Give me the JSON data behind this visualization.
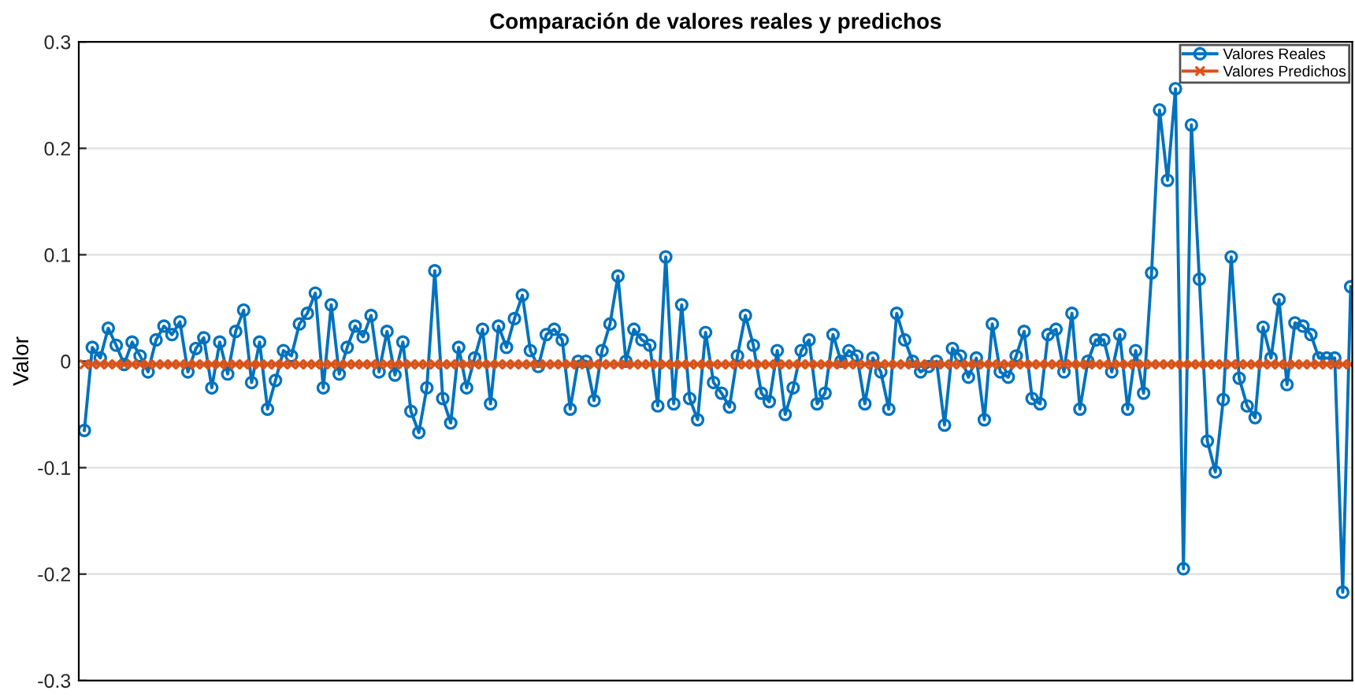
{
  "chart_data": {
    "type": "line",
    "title": "Comparación de valores reales y predichos",
    "ylabel": "Valor",
    "categories": [
      null,
      null,
      null,
      null,
      null,
      null,
      null,
      null,
      null,
      null,
      null,
      null,
      null,
      null,
      null,
      null,
      null,
      null,
      null,
      null,
      null,
      null,
      null,
      null,
      null,
      null,
      null,
      null,
      null,
      null,
      null,
      null,
      null,
      null,
      null,
      null,
      null,
      null,
      null,
      null,
      null,
      null,
      null,
      null,
      null,
      null,
      null,
      null,
      null,
      null,
      null,
      null,
      null,
      null,
      null,
      null,
      null,
      null,
      null,
      null,
      null,
      null,
      null,
      null,
      null,
      null,
      null,
      null,
      null,
      null,
      null,
      null,
      null,
      null,
      null,
      null,
      null,
      null,
      null,
      null,
      null,
      null,
      null,
      null,
      null,
      null,
      null,
      null,
      null,
      null,
      null,
      null,
      null,
      null,
      null,
      null,
      null,
      null,
      null,
      null,
      null,
      null,
      null,
      null,
      null,
      null,
      null,
      null,
      null,
      null,
      null,
      null,
      null,
      null,
      null,
      null,
      null,
      null,
      null,
      null,
      null,
      null,
      null,
      null,
      null,
      null,
      null,
      null,
      null,
      null,
      null,
      null,
      null,
      null,
      null,
      null,
      null,
      null,
      null,
      null,
      null,
      null,
      null,
      null,
      null,
      null,
      null,
      null,
      null,
      null,
      null,
      null,
      null,
      null,
      null,
      null,
      null,
      null,
      null,
      null
    ],
    "series": [
      {
        "name": "Valores Reales",
        "color": "#0072bd",
        "marker": "circle",
        "values": [
          -0.065,
          0.013,
          0.003,
          0.031,
          0.015,
          -0.003,
          0.018,
          0.005,
          -0.01,
          0.02,
          0.033,
          0.025,
          0.037,
          -0.01,
          0.012,
          0.022,
          -0.025,
          0.018,
          -0.012,
          0.028,
          0.048,
          -0.02,
          0.018,
          -0.045,
          -0.018,
          0.01,
          0.005,
          0.035,
          0.045,
          0.064,
          -0.025,
          0.053,
          -0.012,
          0.013,
          0.033,
          0.023,
          0.043,
          -0.01,
          0.028,
          -0.013,
          0.018,
          -0.047,
          -0.067,
          -0.025,
          0.085,
          -0.035,
          -0.058,
          0.013,
          -0.025,
          0.003,
          0.03,
          -0.04,
          0.033,
          0.013,
          0.04,
          0.062,
          0.01,
          -0.005,
          0.025,
          0.03,
          0.02,
          -0.045,
          0.0,
          0.0,
          -0.037,
          0.01,
          0.035,
          0.08,
          0.0,
          0.03,
          0.02,
          0.015,
          -0.042,
          0.098,
          -0.04,
          0.053,
          -0.035,
          -0.055,
          0.027,
          -0.02,
          -0.03,
          -0.043,
          0.005,
          0.043,
          0.015,
          -0.03,
          -0.038,
          0.01,
          -0.05,
          -0.025,
          0.01,
          0.02,
          -0.04,
          -0.03,
          0.025,
          0.0,
          0.01,
          0.005,
          -0.04,
          0.003,
          -0.01,
          -0.045,
          0.045,
          0.02,
          0.0,
          -0.01,
          -0.005,
          0.0,
          -0.06,
          0.012,
          0.005,
          -0.015,
          0.003,
          -0.055,
          0.035,
          -0.01,
          -0.015,
          0.005,
          0.028,
          -0.035,
          -0.04,
          0.025,
          0.03,
          -0.01,
          0.045,
          -0.045,
          0.0,
          0.02,
          0.02,
          -0.01,
          0.025,
          -0.045,
          0.01,
          -0.03,
          0.083,
          0.236,
          0.17,
          0.256,
          -0.195,
          0.222,
          0.077,
          -0.075,
          -0.104,
          -0.036,
          0.098,
          -0.016,
          -0.042,
          -0.053,
          0.032,
          0.003,
          0.058,
          -0.022,
          0.036,
          0.033,
          0.025,
          0.003,
          0.003,
          0.003,
          -0.217,
          0.07
        ]
      },
      {
        "name": "Valores Predichos",
        "color": "#d95319",
        "marker": "cross",
        "values": [
          -0.003,
          -0.003,
          -0.003,
          -0.003,
          -0.003,
          -0.003,
          -0.003,
          -0.003,
          -0.003,
          -0.003,
          -0.003,
          -0.003,
          -0.003,
          -0.003,
          -0.003,
          -0.003,
          -0.003,
          -0.003,
          -0.003,
          -0.003,
          -0.003,
          -0.003,
          -0.003,
          -0.003,
          -0.003,
          -0.003,
          -0.003,
          -0.003,
          -0.003,
          -0.003,
          -0.003,
          -0.003,
          -0.003,
          -0.003,
          -0.003,
          -0.003,
          -0.003,
          -0.003,
          -0.003,
          -0.003,
          -0.003,
          -0.003,
          -0.003,
          -0.003,
          -0.003,
          -0.003,
          -0.003,
          -0.003,
          -0.003,
          -0.003,
          -0.003,
          -0.003,
          -0.003,
          -0.003,
          -0.003,
          -0.003,
          -0.003,
          -0.003,
          -0.003,
          -0.003,
          -0.003,
          -0.003,
          -0.003,
          -0.003,
          -0.003,
          -0.003,
          -0.003,
          -0.003,
          -0.003,
          -0.003,
          -0.003,
          -0.003,
          -0.003,
          -0.003,
          -0.003,
          -0.003,
          -0.003,
          -0.003,
          -0.003,
          -0.003,
          -0.003,
          -0.003,
          -0.003,
          -0.003,
          -0.003,
          -0.003,
          -0.003,
          -0.003,
          -0.003,
          -0.003,
          -0.003,
          -0.003,
          -0.003,
          -0.003,
          -0.003,
          -0.003,
          -0.003,
          -0.003,
          -0.003,
          -0.003,
          -0.003,
          -0.003,
          -0.003,
          -0.003,
          -0.003,
          -0.003,
          -0.003,
          -0.003,
          -0.003,
          -0.003,
          -0.003,
          -0.003,
          -0.003,
          -0.003,
          -0.003,
          -0.003,
          -0.003,
          -0.003,
          -0.003,
          -0.003,
          -0.003,
          -0.003,
          -0.003,
          -0.003,
          -0.003,
          -0.003,
          -0.003,
          -0.003,
          -0.003,
          -0.003,
          -0.003,
          -0.003,
          -0.003,
          -0.003,
          -0.003,
          -0.003,
          -0.003,
          -0.003,
          -0.003,
          -0.003,
          -0.003,
          -0.003,
          -0.003,
          -0.003,
          -0.003,
          -0.003,
          -0.003,
          -0.003,
          -0.003,
          -0.003,
          -0.003,
          -0.003,
          -0.003,
          -0.003,
          -0.003,
          -0.003,
          -0.003,
          -0.003,
          -0.003,
          -0.003
        ]
      }
    ],
    "ylim": [
      -0.3,
      0.3
    ],
    "yticks": [
      -0.3,
      -0.2,
      -0.1,
      0,
      0.1,
      0.2,
      0.3
    ],
    "grid": "y",
    "legend": "top right",
    "tick_labels": "y",
    "line_style": "solid"
  }
}
